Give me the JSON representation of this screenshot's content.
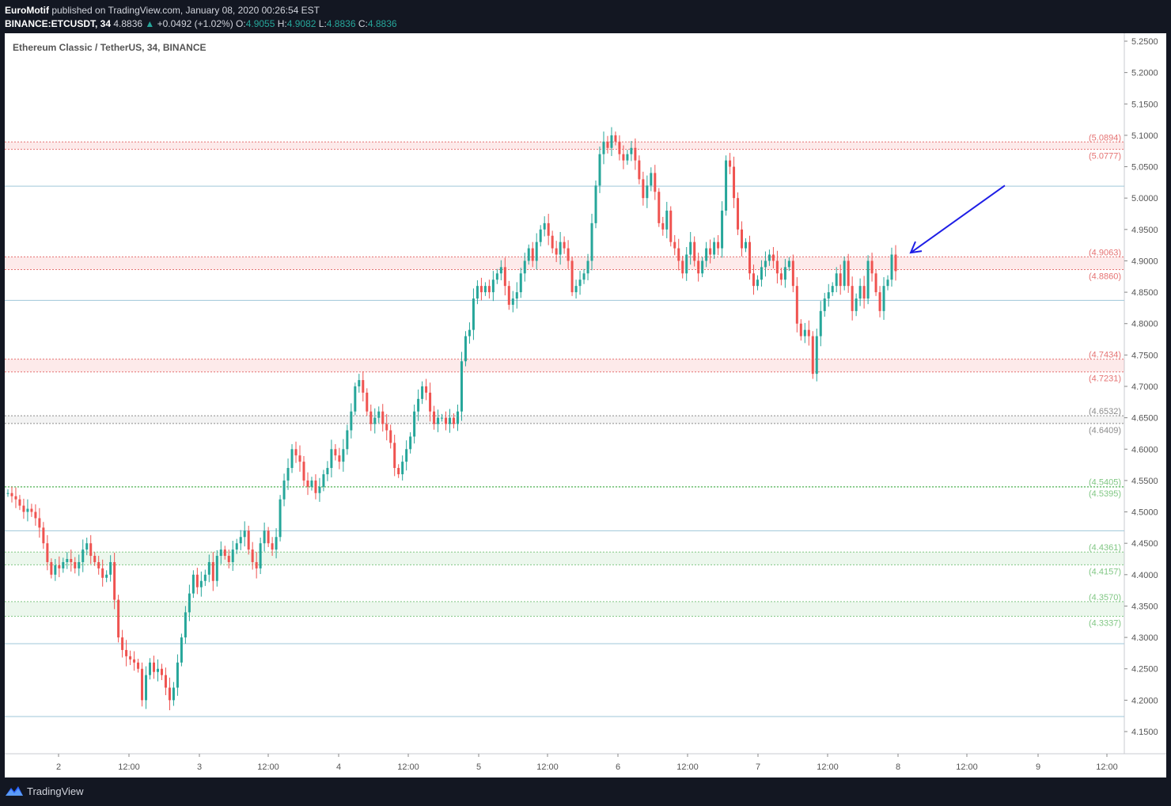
{
  "header": {
    "author": "EuroMotif",
    "published_text": " published on TradingView.com, January 08, 2020 00:26:54 EST",
    "symbol": "BINANCE:ETCUSDT, 34",
    "price": " 4.8836 ",
    "change_arrow": "▲",
    "change": " +0.0492 (+1.02%) ",
    "o_label": "O:",
    "o_value": "4.9055",
    "h_label": " H:",
    "h_value": "4.9082",
    "l_label": " L:",
    "l_value": "4.8836",
    "c_label": " C:",
    "c_value": "4.8836"
  },
  "footer": {
    "brand": "TradingView"
  },
  "colors": {
    "up": "#26a69a",
    "down": "#ef5350",
    "resistance": "#e57373",
    "support": "#81c784",
    "neutral": "#8c8c8c",
    "hline": "#9fc7d9",
    "arrow": "#1e1ee6"
  },
  "chart_data": {
    "type": "candlestick",
    "title": "Ethereum Classic / TetherUS, 34, BINANCE",
    "y_range": [
      4.125,
      5.26
    ],
    "y_ticks": [
      "5.2500",
      "5.2000",
      "5.1500",
      "5.1000",
      "5.0500",
      "5.0000",
      "4.9500",
      "4.9000",
      "4.8500",
      "4.8000",
      "4.7500",
      "4.7000",
      "4.6500",
      "4.6000",
      "4.5500",
      "4.5000",
      "4.4500",
      "4.4000",
      "4.3500",
      "4.3000",
      "4.2500",
      "4.2000",
      "4.1500"
    ],
    "x_ticks": [
      "2",
      "12:00",
      "3",
      "12:00",
      "4",
      "12:00",
      "5",
      "12:00",
      "6",
      "12:00",
      "7",
      "12:00",
      "8",
      "12:00",
      "9",
      "12:00"
    ],
    "zones": [
      {
        "top": 5.0894,
        "bottom": 5.0777,
        "top_label": "(5.0894)",
        "bottom_label": "(5.0777)",
        "kind": "resistance"
      },
      {
        "top": 4.9063,
        "bottom": 4.886,
        "top_label": "(4.9063)",
        "bottom_label": "(4.8860)",
        "kind": "resistance"
      },
      {
        "top": 4.7434,
        "bottom": 4.7231,
        "top_label": "(4.7434)",
        "bottom_label": "(4.7231)",
        "kind": "resistance"
      },
      {
        "top": 4.6532,
        "bottom": 4.6409,
        "top_label": "(4.6532)",
        "bottom_label": "(4.6409)",
        "kind": "neutral"
      },
      {
        "top": 4.5405,
        "bottom": 4.5395,
        "top_label": "(4.5405)",
        "bottom_label": "(4.5395)",
        "kind": "support"
      },
      {
        "top": 4.4361,
        "bottom": 4.4157,
        "top_label": "(4.4361)",
        "bottom_label": "(4.4157)",
        "kind": "support"
      },
      {
        "top": 4.357,
        "bottom": 4.3337,
        "top_label": "(4.3570)",
        "bottom_label": "(4.3337)",
        "kind": "support"
      }
    ],
    "horizontal_lines": [
      5.019,
      4.837,
      4.47,
      4.29,
      4.174
    ],
    "closes": [
      4.53,
      4.525,
      4.52,
      4.51,
      4.5,
      4.505,
      4.5,
      4.49,
      4.475,
      4.45,
      4.42,
      4.4,
      4.415,
      4.41,
      4.42,
      4.425,
      4.42,
      4.41,
      4.42,
      4.44,
      4.45,
      4.43,
      4.42,
      4.41,
      4.395,
      4.4,
      4.42,
      4.36,
      4.3,
      4.28,
      4.27,
      4.265,
      4.26,
      4.25,
      4.2,
      4.24,
      4.26,
      4.245,
      4.25,
      4.24,
      4.22,
      4.2,
      4.22,
      4.26,
      4.3,
      4.34,
      4.37,
      4.4,
      4.38,
      4.39,
      4.4,
      4.42,
      4.39,
      4.43,
      4.44,
      4.43,
      4.42,
      4.44,
      4.45,
      4.46,
      4.47,
      4.44,
      4.42,
      4.41,
      4.45,
      4.47,
      4.45,
      4.44,
      4.46,
      4.52,
      4.55,
      4.57,
      4.6,
      4.59,
      4.58,
      4.55,
      4.54,
      4.55,
      4.53,
      4.54,
      4.56,
      4.57,
      4.6,
      4.59,
      4.58,
      4.6,
      4.63,
      4.66,
      4.7,
      4.71,
      4.69,
      4.66,
      4.64,
      4.65,
      4.66,
      4.64,
      4.63,
      4.61,
      4.57,
      4.56,
      4.58,
      4.6,
      4.62,
      4.66,
      4.68,
      4.7,
      4.69,
      4.66,
      4.64,
      4.65,
      4.65,
      4.64,
      4.65,
      4.64,
      4.66,
      4.74,
      4.78,
      4.79,
      4.84,
      4.86,
      4.85,
      4.86,
      4.85,
      4.87,
      4.88,
      4.89,
      4.86,
      4.83,
      4.84,
      4.85,
      4.88,
      4.9,
      4.92,
      4.9,
      4.93,
      4.95,
      4.96,
      4.94,
      4.92,
      4.91,
      4.93,
      4.92,
      4.9,
      4.85,
      4.86,
      4.87,
      4.88,
      4.9,
      4.96,
      5.02,
      5.07,
      5.09,
      5.08,
      5.1,
      5.09,
      5.07,
      5.06,
      5.07,
      5.08,
      5.06,
      5.03,
      5.0,
      5.02,
      5.04,
      5.01,
      4.96,
      4.95,
      4.98,
      4.93,
      4.92,
      4.9,
      4.88,
      4.91,
      4.93,
      4.9,
      4.88,
      4.9,
      4.92,
      4.91,
      4.93,
      4.92,
      4.98,
      5.06,
      5.05,
      5.0,
      4.95,
      4.92,
      4.93,
      4.88,
      4.86,
      4.87,
      4.89,
      4.9,
      4.91,
      4.9,
      4.88,
      4.87,
      4.89,
      4.9,
      4.86,
      4.8,
      4.78,
      4.79,
      4.78,
      4.72,
      4.78,
      4.82,
      4.84,
      4.85,
      4.86,
      4.88,
      4.86,
      4.9,
      4.86,
      4.82,
      4.84,
      4.86,
      4.84,
      4.9,
      4.88,
      4.85,
      4.82,
      4.86,
      4.87,
      4.91,
      4.8836
    ]
  },
  "annotation": {
    "arrow": {
      "from_date_offset": 0.765,
      "from_price": 5.02,
      "to_price": 4.913
    }
  }
}
